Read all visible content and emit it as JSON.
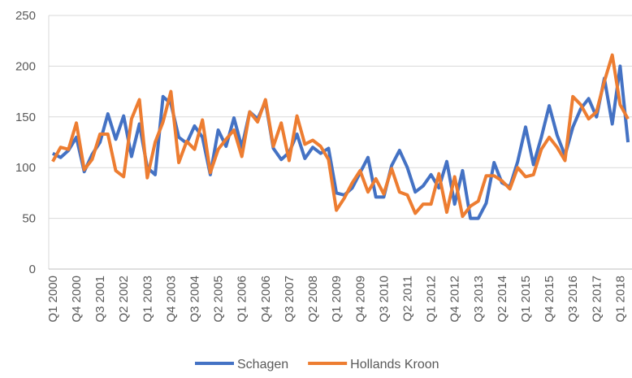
{
  "chart_data": {
    "type": "line",
    "categories": [
      "Q1 2000",
      null,
      null,
      "Q4 2000",
      null,
      null,
      "Q3 2001",
      null,
      null,
      "Q2 2002",
      null,
      null,
      "Q1 2003",
      null,
      null,
      "Q4 2003",
      null,
      null,
      "Q3 2004",
      null,
      null,
      "Q2 2005",
      null,
      null,
      "Q1 2006",
      null,
      null,
      "Q4 2006",
      null,
      null,
      "Q3 2007",
      null,
      null,
      "Q2 2008",
      null,
      null,
      "Q1 2009",
      null,
      null,
      "Q4 2009",
      null,
      null,
      "Q3 2010",
      null,
      null,
      "Q2 2011",
      null,
      null,
      "Q1 2012",
      null,
      null,
      "Q4 2012",
      null,
      null,
      "Q3 2013",
      null,
      null,
      "Q2 2014",
      null,
      null,
      "Q1 2015",
      null,
      null,
      "Q4 2015",
      null,
      null,
      "Q3 2016",
      null,
      null,
      "Q2 2017",
      null,
      null,
      "Q1 2018",
      null
    ],
    "series": [
      {
        "name": "Schagen",
        "color": "#4472c4",
        "values": [
          114,
          110,
          117,
          130,
          96,
          113,
          125,
          153,
          128,
          151,
          111,
          143,
          100,
          93,
          170,
          163,
          130,
          124,
          141,
          130,
          93,
          137,
          121,
          149,
          120,
          155,
          148,
          165,
          119,
          108,
          115,
          133,
          109,
          120,
          114,
          119,
          75,
          73,
          80,
          95,
          110,
          71,
          71,
          102,
          117,
          100,
          76,
          82,
          93,
          80,
          106,
          64,
          97,
          50,
          50,
          65,
          105,
          85,
          81,
          106,
          140,
          103,
          130,
          161,
          132,
          112,
          140,
          158,
          168,
          150,
          188,
          143,
          200,
          125
        ]
      },
      {
        "name": "Hollands Kroon",
        "color": "#ed7d31",
        "values": [
          106,
          120,
          118,
          144,
          98,
          108,
          133,
          133,
          97,
          91,
          148,
          167,
          90,
          125,
          145,
          175,
          105,
          126,
          118,
          147,
          95,
          118,
          128,
          137,
          111,
          155,
          145,
          167,
          121,
          144,
          107,
          151,
          123,
          127,
          121,
          108,
          58,
          70,
          85,
          97,
          76,
          89,
          74,
          99,
          76,
          73,
          55,
          64,
          64,
          94,
          56,
          91,
          52,
          62,
          67,
          92,
          92,
          87,
          79,
          100,
          91,
          93,
          118,
          130,
          120,
          107,
          170,
          162,
          148,
          155,
          185,
          211,
          162,
          148
        ]
      }
    ],
    "ylim": [
      0,
      250
    ],
    "yticks": [
      0,
      50,
      100,
      150,
      200,
      250
    ],
    "grid": true
  }
}
